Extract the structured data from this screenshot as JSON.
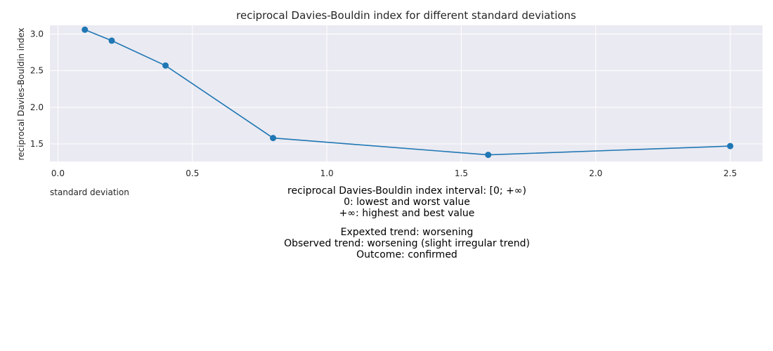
{
  "chart_data": {
    "type": "line",
    "title": "reciprocal Davies-Bouldin index for different standard deviations",
    "xlabel": "standard deviation",
    "ylabel": "reciprocal Davies-Bouldin index",
    "x": [
      0.1,
      0.2,
      0.4,
      0.8,
      1.6,
      2.5
    ],
    "series": [
      {
        "values": [
          3.06,
          2.91,
          2.57,
          1.58,
          1.35,
          1.47
        ],
        "color": "#1f77b4"
      }
    ],
    "xlim": [
      -0.03,
      2.62
    ],
    "ylim": [
      1.26,
      3.12
    ],
    "xticks": [
      0.0,
      0.5,
      1.0,
      1.5,
      2.0,
      2.5
    ],
    "xtick_labels": [
      "0.0",
      "0.5",
      "1.0",
      "1.5",
      "2.0",
      "2.5"
    ],
    "yticks": [
      1.5,
      2.0,
      2.5,
      3.0
    ],
    "ytick_labels": [
      "1.5",
      "2.0",
      "2.5",
      "3.0"
    ],
    "grid": true,
    "background_color": "#eaeaf2"
  },
  "notes": {
    "interval": [
      "reciprocal Davies-Bouldin index interval: [0; +∞)",
      "0: lowest and worst value",
      "+∞: highest and best value"
    ],
    "trend": [
      "Expexted trend: worsening",
      "Observed trend: worsening (slight irregular trend)",
      "Outcome: confirmed"
    ]
  }
}
